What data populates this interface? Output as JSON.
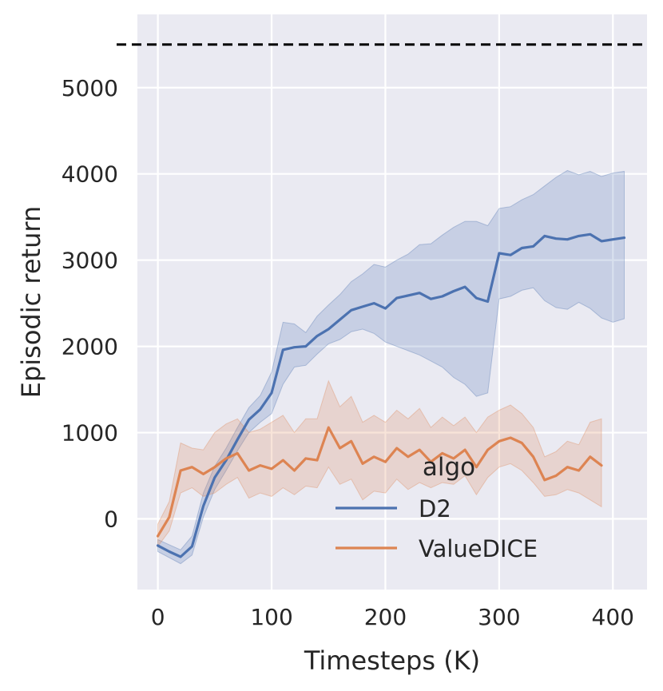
{
  "chart_data": {
    "type": "line",
    "title": "",
    "xlabel": "Timesteps (K)",
    "ylabel": "Episodic return",
    "xlim": [
      -18,
      430
    ],
    "ylim": [
      -820,
      5850
    ],
    "xticks": [
      0,
      100,
      200,
      300,
      400
    ],
    "yticks": [
      0,
      1000,
      2000,
      3000,
      4000,
      5000
    ],
    "grid": true,
    "background": "#EAEAF2",
    "grid_color": "#FFFFFF",
    "reference_line": {
      "y": 5500,
      "style": "dashed",
      "color": "#000000"
    },
    "legend": {
      "title": "algo",
      "placement": "lower-center"
    },
    "series": [
      {
        "name": "D2",
        "color": "#4C72B0",
        "x": [
          0,
          10,
          20,
          30,
          40,
          50,
          60,
          70,
          80,
          90,
          100,
          110,
          120,
          130,
          140,
          150,
          160,
          170,
          180,
          190,
          200,
          210,
          220,
          230,
          240,
          250,
          260,
          270,
          280,
          290,
          300,
          310,
          320,
          330,
          340,
          350,
          360,
          370,
          380,
          390,
          400,
          410
        ],
        "y": [
          -310,
          -380,
          -440,
          -320,
          150,
          480,
          680,
          920,
          1150,
          1270,
          1460,
          1960,
          1990,
          2000,
          2120,
          2200,
          2310,
          2420,
          2460,
          2500,
          2440,
          2560,
          2590,
          2620,
          2550,
          2580,
          2640,
          2690,
          2560,
          2520,
          3080,
          3060,
          3140,
          3160,
          3280,
          3250,
          3240,
          3280,
          3300,
          3220,
          3240,
          3260
        ],
        "lower": [
          -380,
          -450,
          -520,
          -420,
          20,
          340,
          560,
          790,
          1000,
          1120,
          1220,
          1560,
          1760,
          1780,
          1910,
          2030,
          2080,
          2170,
          2200,
          2150,
          2050,
          2000,
          1950,
          1900,
          1830,
          1760,
          1640,
          1560,
          1420,
          1460,
          2550,
          2580,
          2650,
          2680,
          2530,
          2450,
          2430,
          2510,
          2440,
          2330,
          2280,
          2320
        ],
        "upper": [
          -240,
          -300,
          -360,
          -200,
          300,
          610,
          820,
          1060,
          1290,
          1430,
          1700,
          2280,
          2260,
          2160,
          2350,
          2480,
          2600,
          2750,
          2840,
          2950,
          2920,
          3000,
          3070,
          3180,
          3190,
          3290,
          3380,
          3450,
          3450,
          3400,
          3600,
          3620,
          3700,
          3760,
          3860,
          3960,
          4040,
          3990,
          4030,
          3970,
          4010,
          4030
        ]
      },
      {
        "name": "ValueDICE",
        "color": "#DD8452",
        "x": [
          0,
          10,
          20,
          30,
          40,
          50,
          60,
          70,
          80,
          90,
          100,
          110,
          120,
          130,
          140,
          150,
          160,
          170,
          180,
          190,
          200,
          210,
          220,
          230,
          240,
          250,
          260,
          270,
          280,
          290,
          300,
          310,
          320,
          330,
          340,
          350,
          360,
          370,
          380,
          390
        ],
        "y": [
          -200,
          20,
          560,
          600,
          520,
          600,
          700,
          760,
          560,
          620,
          580,
          680,
          560,
          700,
          680,
          1060,
          820,
          900,
          640,
          720,
          660,
          820,
          720,
          800,
          660,
          760,
          700,
          800,
          600,
          800,
          900,
          940,
          880,
          720,
          450,
          500,
          600,
          560,
          720,
          620
        ],
        "lower": [
          -320,
          -140,
          300,
          360,
          260,
          300,
          400,
          480,
          240,
          300,
          260,
          360,
          280,
          380,
          360,
          600,
          400,
          460,
          220,
          320,
          300,
          460,
          340,
          420,
          360,
          420,
          400,
          500,
          280,
          480,
          600,
          640,
          560,
          420,
          260,
          280,
          340,
          300,
          220,
          140
        ],
        "upper": [
          -60,
          200,
          880,
          820,
          800,
          1000,
          1100,
          1160,
          1000,
          1040,
          1120,
          1200,
          1000,
          1160,
          1160,
          1600,
          1300,
          1420,
          1120,
          1200,
          1120,
          1260,
          1160,
          1280,
          1060,
          1180,
          1080,
          1180,
          1000,
          1180,
          1260,
          1320,
          1220,
          1060,
          720,
          780,
          900,
          860,
          1120,
          1160
        ]
      }
    ]
  }
}
